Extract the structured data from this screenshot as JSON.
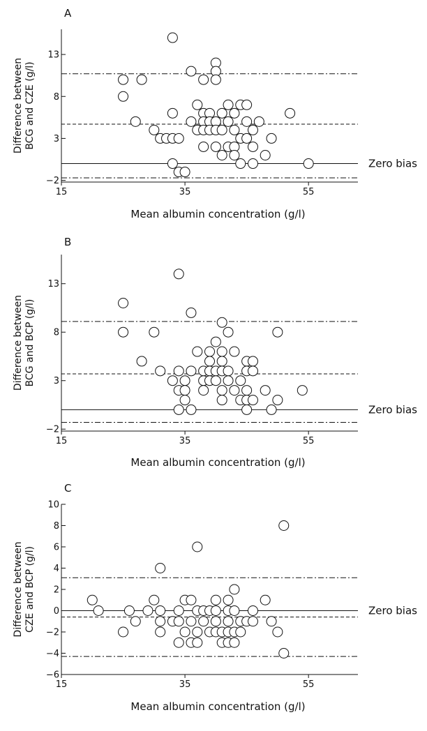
{
  "figure": {
    "zero_label": "Zero bias"
  },
  "chart_data": [
    {
      "type": "scatter",
      "panel": "A",
      "xlabel": "Mean albumin concentration (g/l)",
      "ylabel": [
        "Difference between",
        "BCG and CZE (g/l)"
      ],
      "xlim": [
        15,
        63
      ],
      "ylim": [
        -2.2,
        16
      ],
      "xticks": [
        15,
        35,
        55
      ],
      "yticks": [
        -2,
        3,
        8,
        13
      ],
      "grid": false,
      "reference_lines": [
        {
          "name": "Zero bias",
          "y": 0,
          "style": "solid"
        },
        {
          "name": "mean",
          "y": 4.7,
          "style": "dashed"
        },
        {
          "name": "upper limit",
          "y": 10.7,
          "style": "dashdot"
        },
        {
          "name": "lower limit",
          "y": -1.7,
          "style": "dashdot"
        }
      ],
      "points": [
        [
          33,
          15
        ],
        [
          40,
          12
        ],
        [
          36,
          11
        ],
        [
          40,
          11
        ],
        [
          25,
          10
        ],
        [
          28,
          10
        ],
        [
          38,
          10
        ],
        [
          40,
          10
        ],
        [
          25,
          8
        ],
        [
          37,
          7
        ],
        [
          42,
          7
        ],
        [
          44,
          7
        ],
        [
          45,
          7
        ],
        [
          33,
          6
        ],
        [
          38,
          6
        ],
        [
          39,
          6
        ],
        [
          41,
          6
        ],
        [
          43,
          6
        ],
        [
          52,
          6
        ],
        [
          27,
          5
        ],
        [
          36,
          5
        ],
        [
          38,
          5
        ],
        [
          39,
          5
        ],
        [
          40,
          5
        ],
        [
          42,
          5
        ],
        [
          45,
          5
        ],
        [
          47,
          5
        ],
        [
          30,
          4
        ],
        [
          37,
          4
        ],
        [
          38,
          4
        ],
        [
          39,
          4
        ],
        [
          40,
          4
        ],
        [
          41,
          4
        ],
        [
          43,
          4
        ],
        [
          46,
          4
        ],
        [
          31,
          3
        ],
        [
          32,
          3
        ],
        [
          33,
          3
        ],
        [
          34,
          3
        ],
        [
          44,
          3
        ],
        [
          45,
          3
        ],
        [
          49,
          3
        ],
        [
          38,
          2
        ],
        [
          40,
          2
        ],
        [
          42,
          2
        ],
        [
          43,
          2
        ],
        [
          46,
          2
        ],
        [
          41,
          1
        ],
        [
          43,
          1
        ],
        [
          48,
          1
        ],
        [
          33,
          0
        ],
        [
          44,
          0
        ],
        [
          46,
          0
        ],
        [
          55,
          0
        ],
        [
          34,
          -1
        ],
        [
          35,
          -1
        ]
      ]
    },
    {
      "type": "scatter",
      "panel": "B",
      "xlabel": "Mean albumin concentration (g/l)",
      "ylabel": [
        "Difference between",
        "BCG and BCP (g/l)"
      ],
      "xlim": [
        15,
        63
      ],
      "ylim": [
        -2.2,
        16
      ],
      "xticks": [
        15,
        35,
        55
      ],
      "yticks": [
        -2,
        3,
        8,
        13
      ],
      "grid": false,
      "reference_lines": [
        {
          "name": "Zero bias",
          "y": 0,
          "style": "solid"
        },
        {
          "name": "mean",
          "y": 3.7,
          "style": "dashed"
        },
        {
          "name": "upper limit",
          "y": 9.1,
          "style": "dashdot"
        },
        {
          "name": "lower limit",
          "y": -1.3,
          "style": "dashdot"
        }
      ],
      "points": [
        [
          34,
          14
        ],
        [
          25,
          11
        ],
        [
          36,
          10
        ],
        [
          41,
          9
        ],
        [
          25,
          8
        ],
        [
          30,
          8
        ],
        [
          42,
          8
        ],
        [
          50,
          8
        ],
        [
          40,
          7
        ],
        [
          37,
          6
        ],
        [
          39,
          6
        ],
        [
          41,
          6
        ],
        [
          43,
          6
        ],
        [
          28,
          5
        ],
        [
          39,
          5
        ],
        [
          41,
          5
        ],
        [
          45,
          5
        ],
        [
          46,
          5
        ],
        [
          31,
          4
        ],
        [
          34,
          4
        ],
        [
          36,
          4
        ],
        [
          38,
          4
        ],
        [
          39,
          4
        ],
        [
          40,
          4
        ],
        [
          41,
          4
        ],
        [
          42,
          4
        ],
        [
          45,
          4
        ],
        [
          46,
          4
        ],
        [
          33,
          3
        ],
        [
          35,
          3
        ],
        [
          38,
          3
        ],
        [
          39,
          3
        ],
        [
          40,
          3
        ],
        [
          42,
          3
        ],
        [
          44,
          3
        ],
        [
          34,
          2
        ],
        [
          35,
          2
        ],
        [
          38,
          2
        ],
        [
          41,
          2
        ],
        [
          43,
          2
        ],
        [
          45,
          2
        ],
        [
          48,
          2
        ],
        [
          54,
          2
        ],
        [
          35,
          1
        ],
        [
          41,
          1
        ],
        [
          44,
          1
        ],
        [
          45,
          1
        ],
        [
          46,
          1
        ],
        [
          50,
          1
        ],
        [
          34,
          0
        ],
        [
          36,
          0
        ],
        [
          45,
          0
        ],
        [
          49,
          0
        ]
      ]
    },
    {
      "type": "scatter",
      "panel": "C",
      "xlabel": "Mean albumin concentration (g/l)",
      "ylabel": [
        "Difference between",
        "CZE and BCP (g/l)"
      ],
      "xlim": [
        15,
        63
      ],
      "ylim": [
        -6,
        10
      ],
      "xticks": [
        15,
        35,
        55
      ],
      "yticks": [
        -6,
        -4,
        -2,
        0,
        2,
        4,
        6,
        8,
        10
      ],
      "grid": false,
      "reference_lines": [
        {
          "name": "Zero bias",
          "y": 0,
          "style": "solid"
        },
        {
          "name": "mean",
          "y": -0.6,
          "style": "dashed"
        },
        {
          "name": "upper limit",
          "y": 3.1,
          "style": "dashdot"
        },
        {
          "name": "lower limit",
          "y": -4.3,
          "style": "dashdot"
        }
      ],
      "points": [
        [
          51,
          8
        ],
        [
          37,
          6
        ],
        [
          31,
          4
        ],
        [
          43,
          2
        ],
        [
          20,
          1
        ],
        [
          30,
          1
        ],
        [
          35,
          1
        ],
        [
          36,
          1
        ],
        [
          40,
          1
        ],
        [
          42,
          1
        ],
        [
          48,
          1
        ],
        [
          21,
          0
        ],
        [
          26,
          0
        ],
        [
          29,
          0
        ],
        [
          31,
          0
        ],
        [
          34,
          0
        ],
        [
          37,
          0
        ],
        [
          38,
          0
        ],
        [
          39,
          0
        ],
        [
          40,
          0
        ],
        [
          42,
          0
        ],
        [
          43,
          0
        ],
        [
          46,
          0
        ],
        [
          27,
          -1
        ],
        [
          31,
          -1
        ],
        [
          33,
          -1
        ],
        [
          34,
          -1
        ],
        [
          36,
          -1
        ],
        [
          38,
          -1
        ],
        [
          40,
          -1
        ],
        [
          42,
          -1
        ],
        [
          44,
          -1
        ],
        [
          45,
          -1
        ],
        [
          46,
          -1
        ],
        [
          49,
          -1
        ],
        [
          25,
          -2
        ],
        [
          31,
          -2
        ],
        [
          35,
          -2
        ],
        [
          37,
          -2
        ],
        [
          39,
          -2
        ],
        [
          40,
          -2
        ],
        [
          41,
          -2
        ],
        [
          42,
          -2
        ],
        [
          43,
          -2
        ],
        [
          44,
          -2
        ],
        [
          50,
          -2
        ],
        [
          34,
          -3
        ],
        [
          36,
          -3
        ],
        [
          37,
          -3
        ],
        [
          41,
          -3
        ],
        [
          42,
          -3
        ],
        [
          43,
          -3
        ],
        [
          51,
          -4
        ]
      ]
    }
  ]
}
